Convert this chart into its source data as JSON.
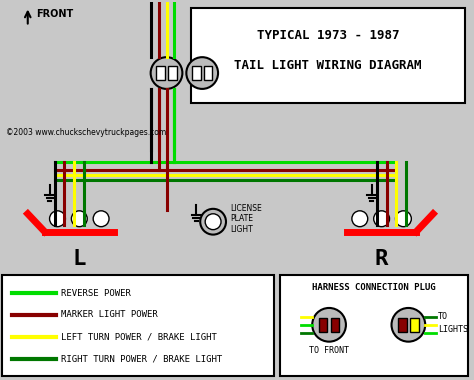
{
  "title_line1": "TYPICAL 1973 - 1987",
  "title_line2": "TAIL LIGHT WIRING DIAGRAM",
  "copyright": "©2003 www.chuckschevytruckpages.com",
  "front_label": "FRONT",
  "left_label": "L",
  "right_label": "R",
  "bg_color": "#c8c8c8",
  "black": "#000000",
  "green_bright": "#00dd00",
  "dark_red": "#880000",
  "yellow": "#ffff00",
  "dark_green": "#007700",
  "white": "#ffffff",
  "red_bright": "#ff0000",
  "light_gray": "#bbbbbb",
  "legend_items": [
    {
      "color": "#00dd00",
      "label": "REVERSE POWER"
    },
    {
      "color": "#880000",
      "label": "MARKER LIGHT POWER"
    },
    {
      "color": "#ffff00",
      "label": "LEFT TURN POWER / BRAKE LIGHT"
    },
    {
      "color": "#007700",
      "label": "RIGHT TURN POWER / BRAKE LIGHT"
    }
  ],
  "harness_title": "HARNESS CONNECTION PLUG"
}
